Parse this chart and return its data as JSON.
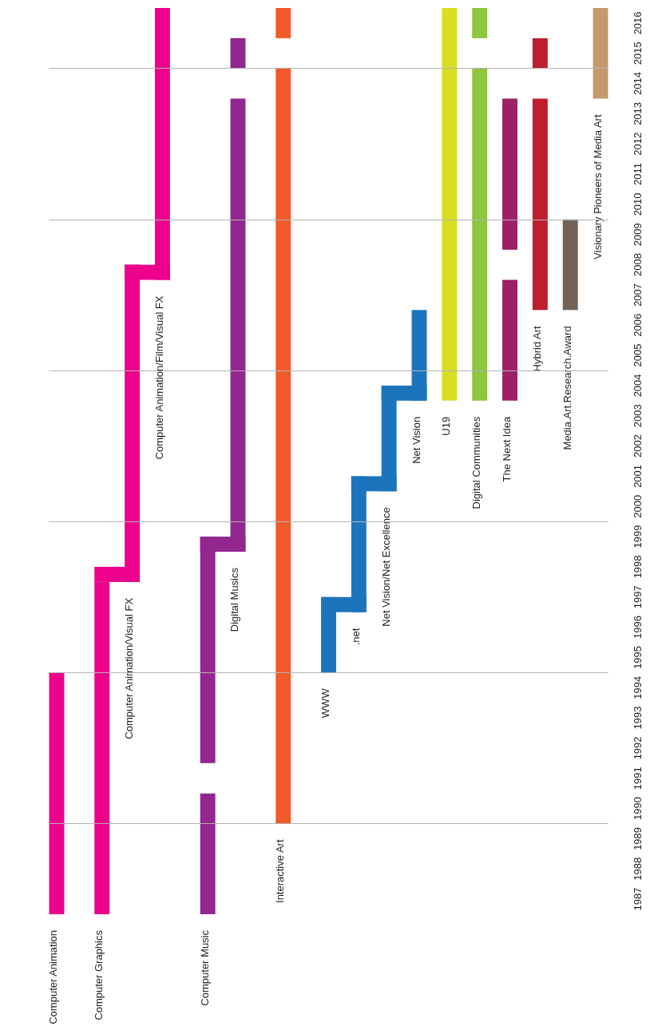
{
  "chart_data": {
    "type": "bar",
    "categories": [
      "Computer Animation",
      null,
      null,
      "Computer Graphics",
      null,
      "Computer Animation/Visual FX",
      null,
      "Computer Animation/Film/Visual FX",
      null,
      null,
      "Computer Music",
      null,
      "Digital Musics",
      null,
      null,
      "Interactive Art",
      null,
      null,
      "WWW",
      null,
      ".net",
      null,
      "Net Vision/Net Excellence",
      null,
      "Net Vision",
      null,
      "U19",
      null,
      "Digital Communities",
      null,
      "The Next Idea",
      null,
      "Hybrid Art",
      null,
      "Media.Art.Research.Award",
      null,
      "Visionary Pioneers of Media Art"
    ],
    "series": [
      {
        "base": [
          1987,
          null,
          null,
          1987,
          null,
          1998,
          null,
          2008,
          null,
          null,
          1987,
          null,
          1999,
          null,
          null,
          1990,
          null,
          null,
          1995,
          null,
          1997,
          null,
          2001,
          null,
          2004,
          null,
          2004,
          null,
          2004,
          null,
          2004,
          null,
          2007,
          null,
          2007,
          null,
          2014
        ],
        "values": [
          8,
          null,
          null,
          11,
          null,
          10.5,
          null,
          9,
          null,
          null,
          4,
          null,
          15,
          null,
          null,
          25,
          null,
          null,
          2.5,
          null,
          4.5,
          null,
          3.5,
          null,
          3,
          null,
          13,
          null,
          11,
          null,
          4,
          null,
          7,
          null,
          3,
          null,
          3
        ],
        "colors": [
          "#ec008c",
          null,
          null,
          "#ec008c",
          null,
          "#ec008c",
          null,
          "#ec008c",
          null,
          null,
          "#92278f",
          null,
          "#92278f",
          null,
          null,
          "#f15a29",
          null,
          null,
          "#1c75bc",
          null,
          "#1c75bc",
          null,
          "#1c75bc",
          null,
          "#1c75bc",
          null,
          "#d7df23",
          null,
          "#8dc63f",
          null,
          "#9e1f63",
          null,
          "#be1e2d",
          null,
          "#736357",
          null,
          "#c49a6c"
        ]
      },
      {
        "base": [
          null,
          null,
          null,
          null,
          null,
          null,
          null,
          null,
          null,
          null,
          1992,
          null,
          2015,
          null,
          null,
          2016,
          null,
          null,
          null,
          null,
          null,
          null,
          null,
          null,
          null,
          null,
          null,
          null,
          2016,
          null,
          2009,
          null,
          2015,
          null,
          null,
          null,
          null
        ],
        "values": [
          null,
          null,
          null,
          null,
          null,
          null,
          null,
          null,
          null,
          null,
          7.5,
          null,
          1,
          null,
          null,
          1,
          null,
          null,
          null,
          null,
          null,
          null,
          null,
          null,
          null,
          null,
          null,
          null,
          1,
          null,
          5,
          null,
          1,
          null,
          null,
          null,
          null
        ],
        "colors": [
          null,
          null,
          null,
          null,
          null,
          null,
          null,
          null,
          null,
          null,
          "#92278f",
          null,
          "#92278f",
          null,
          null,
          "#f15a29",
          null,
          null,
          null,
          null,
          null,
          null,
          null,
          null,
          null,
          null,
          null,
          null,
          "#8dc63f",
          null,
          "#9e1f63",
          null,
          "#be1e2d",
          null,
          null,
          null,
          null
        ]
      }
    ],
    "ylim": [
      1987,
      2017
    ],
    "yticks": [
      {
        "value": 1987.5,
        "label": "1987"
      },
      {
        "value": 1988.5,
        "label": "1988"
      },
      {
        "value": 1989.5,
        "label": "1989"
      },
      {
        "value": 1990.5,
        "label": "1990"
      },
      {
        "value": 1991.5,
        "label": "1991"
      },
      {
        "value": 1992.5,
        "label": "1992"
      },
      {
        "value": 1993.5,
        "label": "1993"
      },
      {
        "value": 1994.5,
        "label": "1994"
      },
      {
        "value": 1995.5,
        "label": "1995"
      },
      {
        "value": 1996.5,
        "label": "1996"
      },
      {
        "value": 1997.5,
        "label": "1997"
      },
      {
        "value": 1998.5,
        "label": "1998"
      },
      {
        "value": 1999.5,
        "label": "1999"
      },
      {
        "value": 2000.5,
        "label": "2000"
      },
      {
        "value": 2001.5,
        "label": "2001"
      },
      {
        "value": 2002.5,
        "label": "2002"
      },
      {
        "value": 2003.5,
        "label": "2003"
      },
      {
        "value": 2004.5,
        "label": "2004"
      },
      {
        "value": 2005.5,
        "label": "2005"
      },
      {
        "value": 2006.5,
        "label": "2006"
      },
      {
        "value": 2007.5,
        "label": "2007"
      },
      {
        "value": 2008.5,
        "label": "2008"
      },
      {
        "value": 2009.5,
        "label": "2009"
      },
      {
        "value": 2010.5,
        "label": "2010"
      },
      {
        "value": 2011.5,
        "label": "2011"
      },
      {
        "value": 2012.5,
        "label": "2012"
      },
      {
        "value": 2013.5,
        "label": "2013"
      },
      {
        "value": 2014.5,
        "label": "2014"
      },
      {
        "value": 2015.5,
        "label": "2015"
      },
      {
        "value": 2016.5,
        "label": "2016"
      }
    ],
    "ref_lines": [
      {
        "axis": "y",
        "value": 1990,
        "color": "#b3b3b3"
      },
      {
        "axis": "y",
        "value": 1995,
        "color": "#b3b3b3"
      },
      {
        "axis": "y",
        "value": 2000,
        "color": "#b3b3b3"
      },
      {
        "axis": "y",
        "value": 2005,
        "color": "#b3b3b3"
      },
      {
        "axis": "y",
        "value": 2010,
        "color": "#b3b3b3"
      },
      {
        "axis": "y",
        "value": 2015,
        "color": "#b3b3b3"
      }
    ]
  }
}
